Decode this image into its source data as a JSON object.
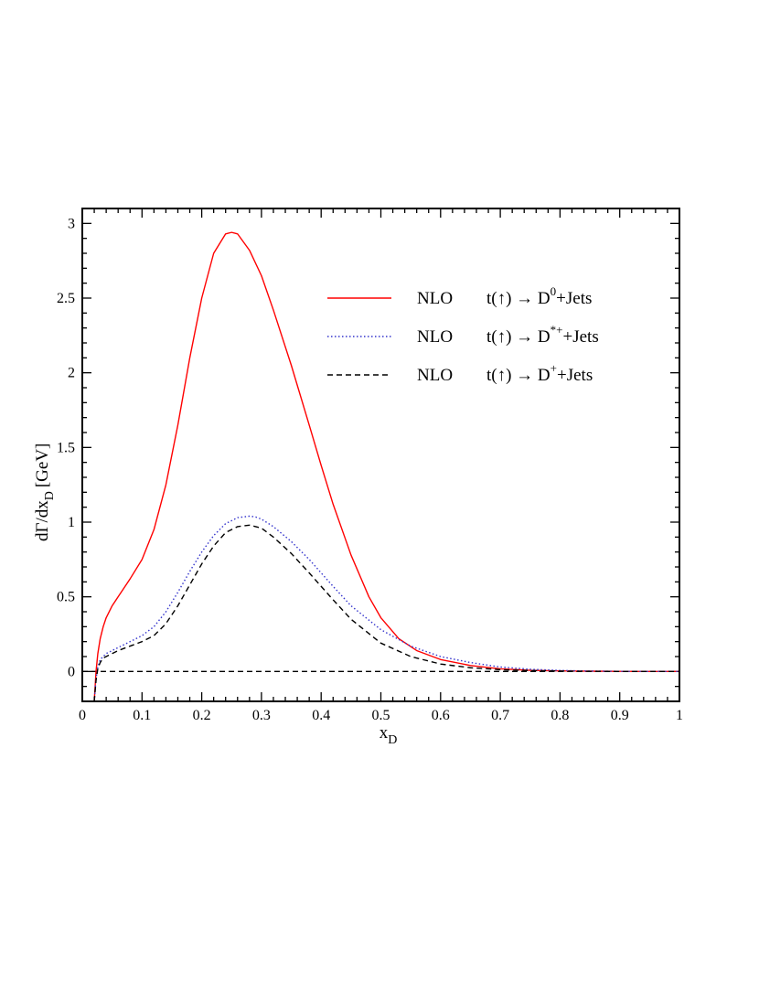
{
  "chart_data": {
    "type": "line",
    "xlabel": {
      "main": "x",
      "sub": "D"
    },
    "ylabel": {
      "pre": "dΓ/dx",
      "sub": "D",
      "post": "[GeV]"
    },
    "xlim": [
      0,
      1
    ],
    "ylim": [
      -0.2,
      3.1
    ],
    "x_ticks": [
      0,
      0.1,
      0.2,
      0.3,
      0.4,
      0.5,
      0.6,
      0.7,
      0.8,
      0.9,
      1
    ],
    "x_tick_labels": [
      "0",
      "0.1",
      "0.2",
      "0.3",
      "0.4",
      "0.5",
      "0.6",
      "0.7",
      "0.8",
      "0.9",
      "1"
    ],
    "y_ticks": [
      0,
      0.5,
      1,
      1.5,
      2,
      2.5,
      3
    ],
    "y_tick_labels": [
      "0",
      "0.5",
      "1",
      "1.5",
      "2",
      "2.5",
      "3"
    ],
    "grid": false,
    "legend_position": "top-right",
    "reference_line": {
      "y": 0,
      "style": "dashed",
      "color": "#000000"
    },
    "series": [
      {
        "name": "D0",
        "legend": {
          "prefix": "NLO",
          "main": "t(↑) → D",
          "sup": "0",
          "suffix": "+Jets"
        },
        "color": "#ff0000",
        "style": "solid",
        "x": [
          0.02,
          0.023,
          0.026,
          0.03,
          0.035,
          0.04,
          0.05,
          0.06,
          0.08,
          0.1,
          0.12,
          0.14,
          0.16,
          0.18,
          0.2,
          0.22,
          0.24,
          0.25,
          0.26,
          0.28,
          0.3,
          0.32,
          0.35,
          0.38,
          0.4,
          0.42,
          0.45,
          0.48,
          0.5,
          0.53,
          0.56,
          0.6,
          0.65,
          0.7,
          0.75,
          0.8,
          0.85,
          0.9,
          0.95,
          1.0
        ],
        "y": [
          -0.2,
          0.0,
          0.12,
          0.22,
          0.3,
          0.36,
          0.44,
          0.5,
          0.62,
          0.75,
          0.95,
          1.25,
          1.65,
          2.1,
          2.5,
          2.8,
          2.93,
          2.94,
          2.93,
          2.82,
          2.65,
          2.42,
          2.05,
          1.65,
          1.38,
          1.12,
          0.78,
          0.5,
          0.36,
          0.22,
          0.14,
          0.08,
          0.04,
          0.018,
          0.008,
          0.004,
          0.002,
          0.001,
          0.0,
          0.0
        ]
      },
      {
        "name": "D*+",
        "legend": {
          "prefix": "NLO",
          "main": "t(↑) → D",
          "sup": "*+",
          "suffix": "+Jets"
        },
        "color": "#3333cc",
        "style": "dotted",
        "x": [
          0.02,
          0.023,
          0.026,
          0.03,
          0.035,
          0.04,
          0.05,
          0.06,
          0.08,
          0.1,
          0.12,
          0.14,
          0.16,
          0.18,
          0.2,
          0.22,
          0.24,
          0.26,
          0.28,
          0.29,
          0.3,
          0.32,
          0.35,
          0.38,
          0.4,
          0.42,
          0.45,
          0.5,
          0.55,
          0.6,
          0.65,
          0.7,
          0.75,
          0.8,
          0.85,
          0.9,
          0.95,
          1.0
        ],
        "y": [
          -0.2,
          -0.05,
          0.03,
          0.08,
          0.1,
          0.12,
          0.14,
          0.16,
          0.2,
          0.24,
          0.3,
          0.4,
          0.53,
          0.67,
          0.8,
          0.91,
          0.99,
          1.03,
          1.04,
          1.035,
          1.02,
          0.97,
          0.87,
          0.75,
          0.66,
          0.57,
          0.44,
          0.28,
          0.17,
          0.1,
          0.06,
          0.03,
          0.015,
          0.007,
          0.003,
          0.001,
          0.0,
          0.0
        ]
      },
      {
        "name": "D+",
        "legend": {
          "prefix": "NLO",
          "main": "t(↑) → D",
          "sup": "+",
          "suffix": "+Jets"
        },
        "color": "#000000",
        "style": "dashed",
        "x": [
          0.02,
          0.023,
          0.026,
          0.03,
          0.035,
          0.04,
          0.05,
          0.06,
          0.08,
          0.1,
          0.12,
          0.14,
          0.16,
          0.18,
          0.2,
          0.22,
          0.24,
          0.26,
          0.28,
          0.3,
          0.32,
          0.35,
          0.38,
          0.4,
          0.42,
          0.45,
          0.5,
          0.55,
          0.6,
          0.65,
          0.7,
          0.75,
          0.8,
          0.85,
          0.9,
          0.95,
          1.0
        ],
        "y": [
          -0.2,
          -0.06,
          0.02,
          0.06,
          0.09,
          0.1,
          0.12,
          0.14,
          0.17,
          0.2,
          0.24,
          0.32,
          0.44,
          0.58,
          0.72,
          0.84,
          0.93,
          0.97,
          0.98,
          0.96,
          0.9,
          0.79,
          0.66,
          0.57,
          0.48,
          0.35,
          0.19,
          0.1,
          0.05,
          0.025,
          0.012,
          0.006,
          0.003,
          0.001,
          0.0,
          0.0,
          0.0
        ]
      }
    ]
  }
}
